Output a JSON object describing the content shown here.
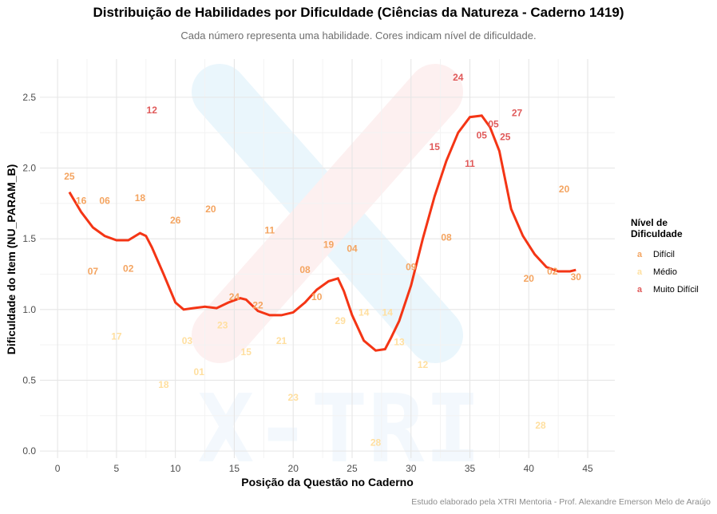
{
  "chart_data": {
    "type": "scatter",
    "title": "Distribuição de Habilidades por Dificuldade (Ciências da Natureza - Caderno 1419)",
    "subtitle": "Cada número representa uma habilidade. Cores indicam nível de dificuldade.",
    "xlabel": "Posição da Questão no Caderno",
    "ylabel": "Dificuldade do Item (NU_PARAM_B)",
    "caption": "Estudo elaborado pela XTRI Mentoria - Prof. Alexandre Emerson Melo de Araújo",
    "xlim": [
      -1.5,
      47.3
    ],
    "ylim": [
      -0.05,
      2.77
    ],
    "x_ticks": [
      0,
      5,
      10,
      15,
      20,
      25,
      30,
      35,
      40,
      45
    ],
    "y_ticks": [
      0.0,
      0.5,
      1.0,
      1.5,
      2.0,
      2.5
    ],
    "x_tick_labels": [
      "0",
      "5",
      "10",
      "15",
      "20",
      "25",
      "30",
      "35",
      "40",
      "45"
    ],
    "y_tick_labels": [
      "0.0",
      "0.5",
      "1.0",
      "1.5",
      "2.0",
      "2.5"
    ],
    "grid": true,
    "watermark": "X-TRI",
    "legend": {
      "title": "Nível de Dificuldade",
      "position": "right",
      "key_glyph": "a",
      "items": [
        {
          "label": "Difícil",
          "color": "#F4A460"
        },
        {
          "label": "Médio",
          "color": "#FFE0A0"
        },
        {
          "label": "Muito Difícil",
          "color": "#E05A5A"
        }
      ]
    },
    "colors": {
      "Difícil": "#F4A460",
      "Médio": "#FFDF9F",
      "Muito Difícil": "#E05A5A",
      "trend": "#F43515"
    },
    "points": [
      {
        "x": 1,
        "y": 1.94,
        "label": "25",
        "level": "Difícil"
      },
      {
        "x": 2,
        "y": 1.77,
        "label": "16",
        "level": "Difícil"
      },
      {
        "x": 3,
        "y": 1.27,
        "label": "07",
        "level": "Difícil"
      },
      {
        "x": 4,
        "y": 1.77,
        "label": "06",
        "level": "Difícil"
      },
      {
        "x": 5,
        "y": 0.81,
        "label": "17",
        "level": "Médio"
      },
      {
        "x": 6,
        "y": 1.29,
        "label": "02",
        "level": "Difícil"
      },
      {
        "x": 7,
        "y": 1.79,
        "label": "18",
        "level": "Difícil"
      },
      {
        "x": 8,
        "y": 2.41,
        "label": "12",
        "level": "Muito Difícil"
      },
      {
        "x": 9,
        "y": 0.47,
        "label": "18",
        "level": "Médio"
      },
      {
        "x": 10,
        "y": 1.63,
        "label": "26",
        "level": "Difícil"
      },
      {
        "x": 11,
        "y": 0.78,
        "label": "03",
        "level": "Médio"
      },
      {
        "x": 12,
        "y": 0.56,
        "label": "01",
        "level": "Médio"
      },
      {
        "x": 13,
        "y": 1.71,
        "label": "20",
        "level": "Difícil"
      },
      {
        "x": 14,
        "y": 0.89,
        "label": "23",
        "level": "Médio"
      },
      {
        "x": 15,
        "y": 1.09,
        "label": "24",
        "level": "Difícil"
      },
      {
        "x": 16,
        "y": 0.7,
        "label": "15",
        "level": "Médio"
      },
      {
        "x": 17,
        "y": 1.03,
        "label": "22",
        "level": "Difícil"
      },
      {
        "x": 18,
        "y": 1.56,
        "label": "11",
        "level": "Difícil"
      },
      {
        "x": 19,
        "y": 0.78,
        "label": "21",
        "level": "Médio"
      },
      {
        "x": 20,
        "y": 0.38,
        "label": "23",
        "level": "Médio"
      },
      {
        "x": 21,
        "y": 1.28,
        "label": "08",
        "level": "Difícil"
      },
      {
        "x": 22,
        "y": 1.09,
        "label": "10",
        "level": "Difícil"
      },
      {
        "x": 23,
        "y": 1.46,
        "label": "19",
        "level": "Difícil"
      },
      {
        "x": 24,
        "y": 0.92,
        "label": "29",
        "level": "Médio"
      },
      {
        "x": 25,
        "y": 1.43,
        "label": "04",
        "level": "Difícil"
      },
      {
        "x": 26,
        "y": 0.98,
        "label": "14",
        "level": "Médio"
      },
      {
        "x": 27,
        "y": 0.06,
        "label": "28",
        "level": "Médio"
      },
      {
        "x": 28,
        "y": 0.98,
        "label": "14",
        "level": "Médio"
      },
      {
        "x": 29,
        "y": 0.77,
        "label": "13",
        "level": "Médio"
      },
      {
        "x": 30,
        "y": 1.3,
        "label": "09",
        "level": "Difícil"
      },
      {
        "x": 31,
        "y": 0.61,
        "label": "12",
        "level": "Médio"
      },
      {
        "x": 32,
        "y": 2.15,
        "label": "15",
        "level": "Muito Difícil"
      },
      {
        "x": 33,
        "y": 1.51,
        "label": "08",
        "level": "Difícil"
      },
      {
        "x": 34,
        "y": 2.64,
        "label": "24",
        "level": "Muito Difícil"
      },
      {
        "x": 35,
        "y": 2.03,
        "label": "11",
        "level": "Muito Difícil"
      },
      {
        "x": 36,
        "y": 2.23,
        "label": "05",
        "level": "Muito Difícil"
      },
      {
        "x": 37,
        "y": 2.31,
        "label": "05",
        "level": "Muito Difícil"
      },
      {
        "x": 38,
        "y": 2.22,
        "label": "25",
        "level": "Muito Difícil"
      },
      {
        "x": 39,
        "y": 2.39,
        "label": "27",
        "level": "Muito Difícil"
      },
      {
        "x": 40,
        "y": 1.22,
        "label": "20",
        "level": "Difícil"
      },
      {
        "x": 41,
        "y": 0.18,
        "label": "28",
        "level": "Médio"
      },
      {
        "x": 42,
        "y": 1.27,
        "label": "02",
        "level": "Difícil"
      },
      {
        "x": 43,
        "y": 1.85,
        "label": "20",
        "level": "Difícil"
      },
      {
        "x": 44,
        "y": 1.23,
        "label": "30",
        "level": "Difícil"
      }
    ],
    "trend": {
      "name": "",
      "x": [
        1,
        2,
        3,
        4,
        5,
        6,
        7,
        7.5,
        8,
        9,
        10,
        10.7,
        11.5,
        12.5,
        13.5,
        14.5,
        15.5,
        16,
        17,
        18,
        19,
        20,
        21,
        22,
        23,
        23.8,
        24.3,
        25,
        26,
        27,
        27.8,
        28.3,
        29,
        30,
        31,
        32,
        33,
        34,
        35,
        36,
        36.7,
        37.5,
        38.5,
        39.5,
        40.5,
        41.5,
        42.5,
        43.5,
        44
      ],
      "y": [
        1.83,
        1.69,
        1.58,
        1.52,
        1.49,
        1.49,
        1.54,
        1.52,
        1.44,
        1.25,
        1.05,
        1.0,
        1.01,
        1.02,
        1.01,
        1.05,
        1.08,
        1.07,
        0.99,
        0.96,
        0.96,
        0.98,
        1.05,
        1.14,
        1.2,
        1.22,
        1.13,
        0.96,
        0.78,
        0.71,
        0.72,
        0.8,
        0.92,
        1.17,
        1.5,
        1.8,
        2.05,
        2.25,
        2.36,
        2.37,
        2.29,
        2.12,
        1.71,
        1.52,
        1.39,
        1.3,
        1.27,
        1.27,
        1.28
      ]
    }
  }
}
